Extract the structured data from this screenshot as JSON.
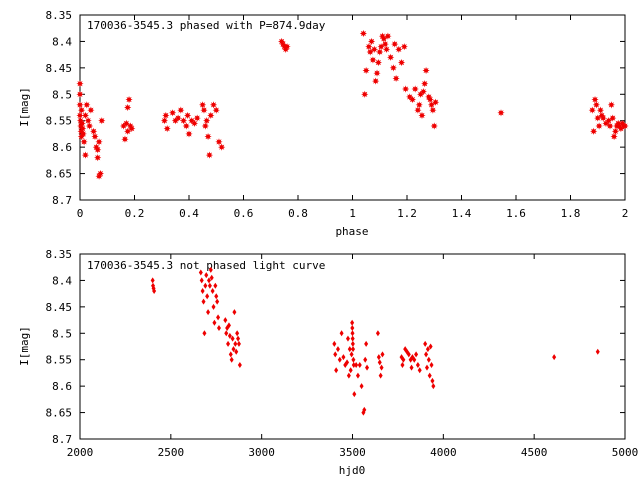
{
  "chart_data": [
    {
      "type": "scatter",
      "title": "170036-3545.3 phased with P=874.9day",
      "xlabel": "phase",
      "ylabel": "I[mag]",
      "xlim": [
        0,
        2
      ],
      "ylim": [
        8.35,
        8.7
      ],
      "y_inverted": true,
      "x_ticks": [
        "0",
        "0.2",
        "0.4",
        "0.6",
        "0.8",
        "1",
        "1.2",
        "1.4",
        "1.6",
        "1.8",
        "2"
      ],
      "x_tick_values": [
        0,
        0.2,
        0.4,
        0.6,
        0.8,
        1,
        1.2,
        1.4,
        1.6,
        1.8,
        2
      ],
      "y_ticks": [
        "8.35",
        "8.4",
        "8.45",
        "8.5",
        "8.55",
        "8.6",
        "8.65",
        "8.7"
      ],
      "y_tick_values": [
        8.35,
        8.4,
        8.45,
        8.5,
        8.55,
        8.6,
        8.65,
        8.7
      ],
      "marker": "filled-star",
      "color": "#ee0000",
      "grid": false,
      "points": [
        [
          0.0,
          8.48
        ],
        [
          0.0,
          8.5
        ],
        [
          0.0,
          8.52
        ],
        [
          0.0,
          8.54
        ],
        [
          0.002,
          8.55
        ],
        [
          0.003,
          8.56
        ],
        [
          0.004,
          8.57
        ],
        [
          0.005,
          8.58
        ],
        [
          0.006,
          8.53
        ],
        [
          0.008,
          8.555
        ],
        [
          0.01,
          8.565
        ],
        [
          0.012,
          8.575
        ],
        [
          0.015,
          8.59
        ],
        [
          0.02,
          8.615
        ],
        [
          0.02,
          8.54
        ],
        [
          0.025,
          8.52
        ],
        [
          0.03,
          8.55
        ],
        [
          0.035,
          8.56
        ],
        [
          0.04,
          8.53
        ],
        [
          0.05,
          8.57
        ],
        [
          0.055,
          8.58
        ],
        [
          0.06,
          8.6
        ],
        [
          0.065,
          8.62
        ],
        [
          0.07,
          8.655
        ],
        [
          0.075,
          8.65
        ],
        [
          0.08,
          8.55
        ],
        [
          0.07,
          8.59
        ],
        [
          0.065,
          8.605
        ],
        [
          0.16,
          8.56
        ],
        [
          0.165,
          8.585
        ],
        [
          0.17,
          8.555
        ],
        [
          0.175,
          8.57
        ],
        [
          0.18,
          8.51
        ],
        [
          0.185,
          8.56
        ],
        [
          0.19,
          8.565
        ],
        [
          0.175,
          8.525
        ],
        [
          0.31,
          8.55
        ],
        [
          0.315,
          8.54
        ],
        [
          0.32,
          8.565
        ],
        [
          0.34,
          8.535
        ],
        [
          0.35,
          8.55
        ],
        [
          0.36,
          8.545
        ],
        [
          0.37,
          8.53
        ],
        [
          0.38,
          8.55
        ],
        [
          0.39,
          8.56
        ],
        [
          0.395,
          8.54
        ],
        [
          0.4,
          8.575
        ],
        [
          0.41,
          8.55
        ],
        [
          0.42,
          8.555
        ],
        [
          0.43,
          8.545
        ],
        [
          0.45,
          8.52
        ],
        [
          0.455,
          8.53
        ],
        [
          0.46,
          8.56
        ],
        [
          0.465,
          8.55
        ],
        [
          0.47,
          8.58
        ],
        [
          0.475,
          8.615
        ],
        [
          0.48,
          8.54
        ],
        [
          0.49,
          8.52
        ],
        [
          0.5,
          8.53
        ],
        [
          0.51,
          8.59
        ],
        [
          0.52,
          8.6
        ],
        [
          0.74,
          8.4
        ],
        [
          0.745,
          8.405
        ],
        [
          0.75,
          8.41
        ],
        [
          0.755,
          8.415
        ],
        [
          0.76,
          8.41
        ],
        [
          1.04,
          8.385
        ],
        [
          1.045,
          8.5
        ],
        [
          1.05,
          8.455
        ],
        [
          1.06,
          8.41
        ],
        [
          1.065,
          8.42
        ],
        [
          1.07,
          8.4
        ],
        [
          1.075,
          8.435
        ],
        [
          1.08,
          8.415
        ],
        [
          1.085,
          8.475
        ],
        [
          1.09,
          8.46
        ],
        [
          1.095,
          8.44
        ],
        [
          1.1,
          8.42
        ],
        [
          1.105,
          8.41
        ],
        [
          1.11,
          8.39
        ],
        [
          1.115,
          8.395
        ],
        [
          1.12,
          8.405
        ],
        [
          1.125,
          8.415
        ],
        [
          1.13,
          8.39
        ],
        [
          1.14,
          8.43
        ],
        [
          1.15,
          8.45
        ],
        [
          1.155,
          8.405
        ],
        [
          1.16,
          8.47
        ],
        [
          1.17,
          8.415
        ],
        [
          1.18,
          8.44
        ],
        [
          1.19,
          8.41
        ],
        [
          1.195,
          8.49
        ],
        [
          1.21,
          8.505
        ],
        [
          1.22,
          8.51
        ],
        [
          1.23,
          8.49
        ],
        [
          1.24,
          8.53
        ],
        [
          1.245,
          8.52
        ],
        [
          1.25,
          8.5
        ],
        [
          1.255,
          8.54
        ],
        [
          1.26,
          8.495
        ],
        [
          1.265,
          8.48
        ],
        [
          1.27,
          8.455
        ],
        [
          1.28,
          8.505
        ],
        [
          1.285,
          8.51
        ],
        [
          1.29,
          8.52
        ],
        [
          1.295,
          8.53
        ],
        [
          1.3,
          8.56
        ],
        [
          1.305,
          8.515
        ],
        [
          1.545,
          8.535
        ],
        [
          1.88,
          8.53
        ],
        [
          1.885,
          8.57
        ],
        [
          1.89,
          8.51
        ],
        [
          1.895,
          8.52
        ],
        [
          1.9,
          8.545
        ],
        [
          1.905,
          8.56
        ],
        [
          1.91,
          8.53
        ],
        [
          1.915,
          8.54
        ],
        [
          1.92,
          8.545
        ],
        [
          1.93,
          8.555
        ],
        [
          1.94,
          8.55
        ],
        [
          1.945,
          8.56
        ],
        [
          1.95,
          8.52
        ],
        [
          1.955,
          8.545
        ],
        [
          1.96,
          8.58
        ],
        [
          1.965,
          8.57
        ],
        [
          1.97,
          8.56
        ],
        [
          1.975,
          8.555
        ],
        [
          1.98,
          8.56
        ],
        [
          1.985,
          8.565
        ],
        [
          1.99,
          8.555
        ],
        [
          1.995,
          8.56
        ],
        [
          2.0,
          8.56
        ]
      ]
    },
    {
      "type": "scatter",
      "title": "170036-3545.3 not phased light curve",
      "xlabel": "hjd0",
      "ylabel": "I[mag]",
      "xlim": [
        2000,
        5000
      ],
      "ylim": [
        8.35,
        8.7
      ],
      "y_inverted": true,
      "x_ticks": [
        "2000",
        "2500",
        "3000",
        "3500",
        "4000",
        "4500",
        "5000"
      ],
      "x_tick_values": [
        2000,
        2500,
        3000,
        3500,
        4000,
        4500,
        5000
      ],
      "y_ticks": [
        "8.35",
        "8.4",
        "8.45",
        "8.5",
        "8.55",
        "8.6",
        "8.65",
        "8.7"
      ],
      "y_tick_values": [
        8.35,
        8.4,
        8.45,
        8.5,
        8.55,
        8.6,
        8.65,
        8.7
      ],
      "marker": "filled-diamond",
      "color": "#ee0000",
      "grid": false,
      "points": [
        [
          2400,
          8.4
        ],
        [
          2402,
          8.41
        ],
        [
          2405,
          8.415
        ],
        [
          2408,
          8.42
        ],
        [
          2665,
          8.385
        ],
        [
          2670,
          8.4
        ],
        [
          2675,
          8.42
        ],
        [
          2680,
          8.44
        ],
        [
          2685,
          8.5
        ],
        [
          2690,
          8.41
        ],
        [
          2695,
          8.39
        ],
        [
          2700,
          8.43
        ],
        [
          2705,
          8.46
        ],
        [
          2710,
          8.4
        ],
        [
          2715,
          8.41
        ],
        [
          2720,
          8.38
        ],
        [
          2725,
          8.395
        ],
        [
          2730,
          8.42
        ],
        [
          2735,
          8.45
        ],
        [
          2740,
          8.48
        ],
        [
          2745,
          8.41
        ],
        [
          2750,
          8.43
        ],
        [
          2755,
          8.44
        ],
        [
          2760,
          8.47
        ],
        [
          2765,
          8.49
        ],
        [
          2800,
          8.475
        ],
        [
          2805,
          8.5
        ],
        [
          2810,
          8.49
        ],
        [
          2815,
          8.52
        ],
        [
          2820,
          8.485
        ],
        [
          2825,
          8.505
        ],
        [
          2830,
          8.54
        ],
        [
          2835,
          8.55
        ],
        [
          2840,
          8.51
        ],
        [
          2845,
          8.53
        ],
        [
          2850,
          8.46
        ],
        [
          2855,
          8.52
        ],
        [
          2860,
          8.535
        ],
        [
          2865,
          8.5
        ],
        [
          2870,
          8.51
        ],
        [
          2875,
          8.52
        ],
        [
          2880,
          8.56
        ],
        [
          3400,
          8.52
        ],
        [
          3405,
          8.54
        ],
        [
          3410,
          8.57
        ],
        [
          3420,
          8.53
        ],
        [
          3430,
          8.55
        ],
        [
          3440,
          8.5
        ],
        [
          3450,
          8.545
        ],
        [
          3460,
          8.56
        ],
        [
          3470,
          8.555
        ],
        [
          3475,
          8.51
        ],
        [
          3480,
          8.58
        ],
        [
          3485,
          8.53
        ],
        [
          3490,
          8.57
        ],
        [
          3495,
          8.54
        ],
        [
          3498,
          8.48
        ],
        [
          3499,
          8.49
        ],
        [
          3500,
          8.5
        ],
        [
          3501,
          8.51
        ],
        [
          3502,
          8.52
        ],
        [
          3503,
          8.53
        ],
        [
          3505,
          8.55
        ],
        [
          3507,
          8.56
        ],
        [
          3510,
          8.615
        ],
        [
          3520,
          8.56
        ],
        [
          3530,
          8.58
        ],
        [
          3540,
          8.56
        ],
        [
          3550,
          8.6
        ],
        [
          3560,
          8.65
        ],
        [
          3565,
          8.645
        ],
        [
          3570,
          8.55
        ],
        [
          3575,
          8.52
        ],
        [
          3580,
          8.565
        ],
        [
          3640,
          8.5
        ],
        [
          3645,
          8.545
        ],
        [
          3650,
          8.555
        ],
        [
          3655,
          8.58
        ],
        [
          3660,
          8.565
        ],
        [
          3665,
          8.54
        ],
        [
          3770,
          8.545
        ],
        [
          3775,
          8.56
        ],
        [
          3780,
          8.55
        ],
        [
          3790,
          8.53
        ],
        [
          3800,
          8.535
        ],
        [
          3810,
          8.54
        ],
        [
          3820,
          8.55
        ],
        [
          3825,
          8.565
        ],
        [
          3830,
          8.545
        ],
        [
          3840,
          8.55
        ],
        [
          3850,
          8.54
        ],
        [
          3860,
          8.56
        ],
        [
          3870,
          8.57
        ],
        [
          3900,
          8.52
        ],
        [
          3905,
          8.54
        ],
        [
          3910,
          8.565
        ],
        [
          3915,
          8.53
        ],
        [
          3920,
          8.55
        ],
        [
          3925,
          8.58
        ],
        [
          3930,
          8.525
        ],
        [
          3935,
          8.56
        ],
        [
          3940,
          8.59
        ],
        [
          3945,
          8.6
        ],
        [
          4610,
          8.545
        ],
        [
          4850,
          8.535
        ]
      ]
    }
  ]
}
